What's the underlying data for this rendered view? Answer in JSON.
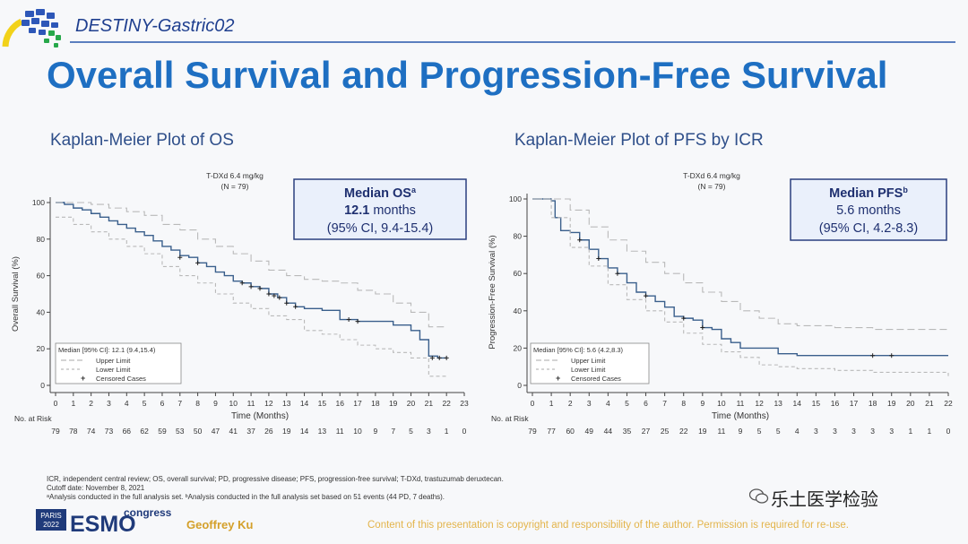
{
  "header": {
    "trial": "DESTINY-Gastric02",
    "title": "Overall Survival and Progression-Free Survival",
    "colors": {
      "title": "#1e6fc2",
      "navy": "#1f3f8f",
      "rule": "#5b7fbf"
    }
  },
  "chart_data": [
    {
      "type": "line",
      "title": "Kaplan-Meier Plot of OS",
      "arm_label": "T-DXd 6.4 mg/kg",
      "arm_n": "(N = 79)",
      "median_box": {
        "title": "Median OS",
        "sup": "a",
        "value": "12.1",
        "unit": "months",
        "ci": "(95% CI, 9.4-15.4)"
      },
      "legend": {
        "median": "Median [95% CI]: 12.1 (9.4,15.4)",
        "upper": "Upper Limit",
        "lower": "Lower Limit",
        "censored": "Censored Cases",
        "position": "bottom-left"
      },
      "xlabel": "Time (Months)",
      "ylabel": "Overall Survival (%)",
      "xlim": [
        0,
        23
      ],
      "ylim": [
        0,
        100
      ],
      "xticks": [
        "0",
        "1",
        "2",
        "3",
        "4",
        "5",
        "6",
        "7",
        "8",
        "9",
        "10",
        "11",
        "12",
        "13",
        "14",
        "15",
        "16",
        "17",
        "18",
        "19",
        "20",
        "21",
        "22",
        "23"
      ],
      "yticks": [
        "0",
        "20",
        "40",
        "60",
        "80",
        "100"
      ],
      "series": [
        {
          "name": "Median",
          "x": [
            0,
            0.5,
            1,
            1.5,
            2,
            2.5,
            3,
            3.5,
            4,
            4.5,
            5,
            5.5,
            6,
            6.5,
            7,
            7.5,
            8,
            8.5,
            9,
            9.5,
            10,
            10.5,
            11,
            11.5,
            12,
            12.5,
            13,
            13.5,
            14,
            15,
            16,
            17,
            18,
            18.5,
            19,
            20,
            20.5,
            21,
            21.5,
            22
          ],
          "y": [
            100,
            99,
            97,
            96,
            94,
            92,
            90,
            88,
            86,
            84,
            82,
            79,
            76,
            74,
            71,
            70,
            67,
            65,
            62,
            60,
            57,
            56,
            54,
            53,
            50,
            48,
            45,
            43,
            42,
            41,
            36,
            35,
            35,
            35,
            33,
            30,
            25,
            16,
            15,
            15
          ]
        },
        {
          "name": "Upper Limit",
          "x": [
            0,
            1,
            2,
            3,
            4,
            5,
            6,
            7,
            8,
            9,
            10,
            11,
            12,
            13,
            14,
            15,
            16,
            17,
            18,
            19,
            20,
            21,
            22
          ],
          "y": [
            100,
            100,
            99,
            97,
            95,
            93,
            88,
            85,
            80,
            76,
            72,
            68,
            63,
            60,
            58,
            57,
            56,
            52,
            50,
            45,
            40,
            32,
            32
          ]
        },
        {
          "name": "Lower Limit",
          "x": [
            0,
            1,
            2,
            3,
            4,
            5,
            6,
            7,
            8,
            9,
            10,
            11,
            12,
            13,
            14,
            15,
            16,
            17,
            18,
            19,
            20,
            21,
            22
          ],
          "y": [
            92,
            88,
            84,
            80,
            76,
            72,
            65,
            60,
            56,
            50,
            45,
            42,
            38,
            36,
            30,
            28,
            25,
            22,
            20,
            18,
            15,
            5,
            5
          ]
        }
      ],
      "censored": {
        "x": [
          7,
          8,
          10.5,
          11,
          11.5,
          12,
          12.3,
          12.6,
          13,
          13.5,
          16.5,
          17,
          21.2,
          21.6,
          22
        ],
        "y": [
          70,
          67,
          56,
          54,
          53,
          50,
          49,
          48,
          45,
          43,
          36,
          35,
          15,
          15,
          15
        ]
      },
      "at_risk": {
        "label": "No. at Risk",
        "values": [
          "79",
          "78",
          "74",
          "73",
          "66",
          "62",
          "59",
          "53",
          "50",
          "47",
          "41",
          "37",
          "26",
          "19",
          "14",
          "13",
          "11",
          "10",
          "9",
          "7",
          "5",
          "3",
          "1",
          "0"
        ]
      }
    },
    {
      "type": "line",
      "title": "Kaplan-Meier Plot of PFS by ICR",
      "arm_label": "T-DXd 6.4 mg/kg",
      "arm_n": "(N = 79)",
      "median_box": {
        "title": "Median PFS",
        "sup": "b",
        "value": "5.6",
        "unit": "months",
        "ci": "(95% CI, 4.2-8.3)"
      },
      "legend": {
        "median": "Median [95% CI]: 5.6 (4.2,8.3)",
        "upper": "Upper Limit",
        "lower": "Lower Limit",
        "censored": "Censored Cases",
        "position": "bottom-left"
      },
      "xlabel": "Time (Months)",
      "ylabel": "Progression-Free Survival (%)",
      "xlim": [
        0,
        22
      ],
      "ylim": [
        0,
        100
      ],
      "xticks": [
        "0",
        "1",
        "2",
        "3",
        "4",
        "5",
        "6",
        "7",
        "8",
        "9",
        "10",
        "11",
        "12",
        "13",
        "14",
        "15",
        "16",
        "17",
        "18",
        "19",
        "20",
        "21",
        "22"
      ],
      "yticks": [
        "0",
        "20",
        "40",
        "60",
        "80",
        "100"
      ],
      "series": [
        {
          "name": "Median",
          "x": [
            0,
            0.5,
            1,
            1.2,
            1.5,
            2,
            2.5,
            3,
            3.5,
            4,
            4.5,
            5,
            5.5,
            6,
            6.5,
            7,
            7.5,
            8,
            8.5,
            9,
            9.5,
            10,
            10.5,
            11,
            12,
            13,
            13.5,
            14,
            16,
            18,
            20,
            22
          ],
          "y": [
            100,
            100,
            99,
            90,
            83,
            82,
            78,
            73,
            68,
            63,
            60,
            55,
            50,
            48,
            45,
            42,
            37,
            36,
            35,
            31,
            30,
            25,
            23,
            20,
            20,
            17,
            17,
            16,
            16,
            16,
            16,
            16
          ]
        },
        {
          "name": "Upper Limit",
          "x": [
            0,
            1,
            2,
            3,
            4,
            5,
            6,
            7,
            8,
            9,
            10,
            11,
            12,
            13,
            14,
            16,
            18,
            20,
            22
          ],
          "y": [
            100,
            100,
            94,
            85,
            78,
            72,
            66,
            60,
            55,
            50,
            45,
            40,
            36,
            33,
            32,
            31,
            30,
            30,
            30
          ]
        },
        {
          "name": "Lower Limit",
          "x": [
            0,
            1,
            2,
            3,
            4,
            5,
            6,
            7,
            8,
            9,
            10,
            11,
            12,
            13,
            14,
            16,
            18,
            20,
            22
          ],
          "y": [
            100,
            90,
            74,
            64,
            54,
            46,
            40,
            34,
            28,
            22,
            18,
            15,
            11,
            10,
            9,
            8,
            7,
            7,
            5
          ]
        }
      ],
      "censored": {
        "x": [
          2.5,
          3.5,
          4.5,
          6,
          8,
          9,
          18,
          19
        ],
        "y": [
          78,
          68,
          60,
          48,
          36,
          31,
          16,
          16
        ]
      },
      "at_risk": {
        "label": "No. at Risk",
        "values": [
          "79",
          "77",
          "60",
          "49",
          "44",
          "35",
          "27",
          "25",
          "22",
          "19",
          "11",
          "9",
          "5",
          "5",
          "4",
          "3",
          "3",
          "3",
          "3",
          "3",
          "1",
          "1",
          "0"
        ]
      }
    }
  ],
  "footer": {
    "fn1": "ICR, independent central review; OS, overall survival; PD, progressive disease; PFS, progression-free survival; T-DXd, trastuzumab deruxtecan.",
    "fn2": "Cutoff date: November 8, 2021",
    "fn3": "ᵃAnalysis conducted in the full analysis set. ᵇAnalysis conducted in the full analysis set based on 51 events (44 PD, 7 deaths).",
    "congress_city": "PARIS",
    "congress_year": "2022",
    "congress_name": "ESMO",
    "congress_word": "congress",
    "presenter": "Geoffrey Ku",
    "copyright": "Content of this presentation is copyright and responsibility of the author. Permission is required for re-use.",
    "watermark": "乐土医学检验"
  }
}
